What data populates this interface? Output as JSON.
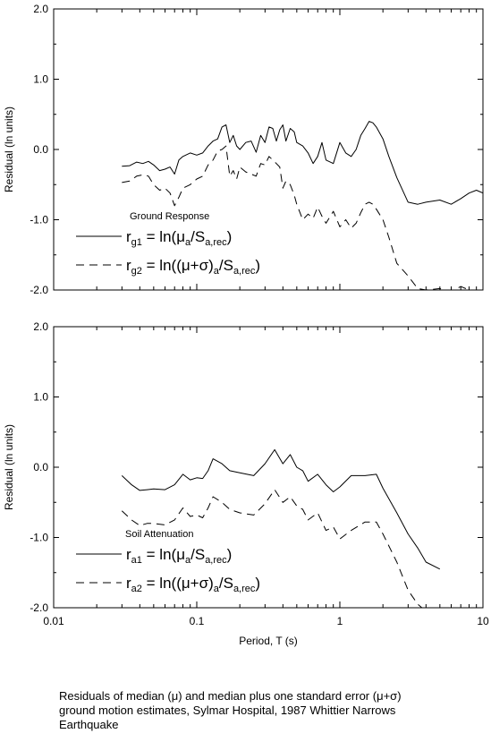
{
  "chart_data": [
    {
      "type": "line",
      "panel": "top",
      "xscale": "log",
      "xlim": [
        0.01,
        10
      ],
      "ylim": [
        -2.0,
        2.0
      ],
      "ylabel": "Residual (ln units)",
      "yticks": [
        "2.0",
        "1.0",
        "0.0",
        "-1.0",
        "-2.0"
      ],
      "annotation": "Ground Response",
      "legend": [
        {
          "style": "solid",
          "sym": "r",
          "sub": "g1",
          "eq": "= ln(",
          "mu": "μ",
          "mu_sub": "a",
          "slash": "/S",
          "s_sub": "a,rec",
          "close": ")"
        },
        {
          "style": "dashed",
          "sym": "r",
          "sub": "g2",
          "eq": "= ln((",
          "mu": "μ+σ",
          "mu_sub": "a",
          "close1": ")",
          "slash": "/S",
          "s_sub": "a,rec",
          "close": ")"
        }
      ],
      "series": [
        {
          "style": "solid",
          "x": [
            0.03,
            0.034,
            0.038,
            0.042,
            0.046,
            0.05,
            0.055,
            0.06,
            0.065,
            0.07,
            0.075,
            0.08,
            0.09,
            0.1,
            0.11,
            0.12,
            0.13,
            0.14,
            0.15,
            0.16,
            0.17,
            0.18,
            0.19,
            0.2,
            0.22,
            0.24,
            0.26,
            0.28,
            0.3,
            0.32,
            0.34,
            0.36,
            0.38,
            0.4,
            0.42,
            0.45,
            0.48,
            0.5,
            0.55,
            0.6,
            0.65,
            0.7,
            0.75,
            0.8,
            0.9,
            1.0,
            1.1,
            1.2,
            1.3,
            1.4,
            1.5,
            1.6,
            1.7,
            1.8,
            2.0,
            2.2,
            2.5,
            3.0,
            3.5,
            4.0,
            5.0,
            6.0,
            7.0,
            8.0,
            9.0,
            10.0
          ],
          "y": [
            -0.24,
            -0.23,
            -0.18,
            -0.2,
            -0.17,
            -0.22,
            -0.3,
            -0.28,
            -0.25,
            -0.35,
            -0.15,
            -0.1,
            -0.05,
            -0.08,
            -0.05,
            0.05,
            0.12,
            0.15,
            0.32,
            0.35,
            0.1,
            0.2,
            0.05,
            0.0,
            0.1,
            0.12,
            -0.04,
            0.2,
            0.1,
            0.32,
            0.3,
            0.12,
            0.28,
            0.35,
            0.12,
            0.3,
            0.25,
            0.1,
            0.05,
            -0.05,
            -0.2,
            -0.1,
            0.1,
            -0.15,
            -0.2,
            0.1,
            -0.05,
            -0.1,
            0.0,
            0.2,
            0.3,
            0.4,
            0.38,
            0.32,
            0.15,
            -0.1,
            -0.4,
            -0.75,
            -0.78,
            -0.75,
            -0.72,
            -0.78,
            -0.7,
            -0.62,
            -0.58,
            -0.62
          ]
        },
        {
          "style": "dashed",
          "x": [
            0.03,
            0.034,
            0.038,
            0.042,
            0.046,
            0.05,
            0.055,
            0.06,
            0.065,
            0.07,
            0.075,
            0.08,
            0.09,
            0.1,
            0.11,
            0.12,
            0.13,
            0.14,
            0.15,
            0.16,
            0.17,
            0.18,
            0.19,
            0.2,
            0.22,
            0.24,
            0.26,
            0.28,
            0.3,
            0.32,
            0.34,
            0.36,
            0.38,
            0.4,
            0.42,
            0.45,
            0.48,
            0.5,
            0.55,
            0.6,
            0.65,
            0.7,
            0.75,
            0.8,
            0.9,
            1.0,
            1.1,
            1.2,
            1.3,
            1.4,
            1.5,
            1.6,
            1.7,
            1.8,
            2.0,
            2.2,
            2.5,
            3.0,
            3.5,
            4.0,
            5.0,
            6.0,
            7.0,
            8.0,
            9.0,
            10.0
          ],
          "y": [
            -0.47,
            -0.45,
            -0.38,
            -0.36,
            -0.38,
            -0.5,
            -0.58,
            -0.55,
            -0.62,
            -0.8,
            -0.68,
            -0.55,
            -0.5,
            -0.42,
            -0.38,
            -0.22,
            -0.15,
            -0.02,
            0.0,
            0.05,
            -0.38,
            -0.3,
            -0.42,
            -0.25,
            -0.32,
            -0.35,
            -0.38,
            -0.2,
            -0.22,
            -0.1,
            -0.15,
            -0.2,
            -0.25,
            -0.55,
            -0.45,
            -0.5,
            -0.65,
            -0.78,
            -1.0,
            -0.92,
            -0.98,
            -0.82,
            -0.95,
            -1.05,
            -0.88,
            -1.1,
            -1.0,
            -1.12,
            -1.05,
            -0.9,
            -0.78,
            -0.75,
            -0.78,
            -0.85,
            -1.0,
            -1.25,
            -1.62,
            -1.8,
            -1.98,
            -2.0,
            -1.98,
            -2.02,
            -1.95,
            -2.0,
            -2.02,
            -2.02
          ]
        }
      ]
    },
    {
      "type": "line",
      "panel": "bottom",
      "xscale": "log",
      "xlim": [
        0.01,
        10
      ],
      "ylim": [
        -2.0,
        2.0
      ],
      "xlabel": "Period, T (s)",
      "ylabel": "Residual (ln units)",
      "xticks": [
        "0.01",
        "0.1",
        "1",
        "10"
      ],
      "yticks": [
        "2.0",
        "1.0",
        "0.0",
        "-1.0",
        "-2.0"
      ],
      "annotation": "Soil Attenuation",
      "legend": [
        {
          "style": "solid",
          "sym": "r",
          "sub": "a1",
          "eq": "= ln(",
          "mu": "μ",
          "mu_sub": "a",
          "slash": "/S",
          "s_sub": "a,rec",
          "close": ")"
        },
        {
          "style": "dashed",
          "sym": "r",
          "sub": "a2",
          "eq": "= ln((",
          "mu": "μ+σ",
          "mu_sub": "a",
          "close1": ")",
          "slash": "/S",
          "s_sub": "a,rec",
          "close": ")"
        }
      ],
      "series": [
        {
          "style": "solid",
          "x": [
            0.03,
            0.035,
            0.04,
            0.045,
            0.05,
            0.06,
            0.07,
            0.08,
            0.09,
            0.1,
            0.11,
            0.12,
            0.13,
            0.15,
            0.17,
            0.2,
            0.25,
            0.3,
            0.35,
            0.4,
            0.45,
            0.5,
            0.55,
            0.6,
            0.7,
            0.8,
            0.9,
            1.0,
            1.2,
            1.5,
            1.8,
            2.0,
            2.5,
            3.0,
            3.5,
            4.0,
            5.0
          ],
          "y": [
            -0.12,
            -0.25,
            -0.33,
            -0.32,
            -0.31,
            -0.32,
            -0.25,
            -0.1,
            -0.18,
            -0.15,
            -0.16,
            -0.05,
            0.12,
            0.05,
            -0.05,
            -0.08,
            -0.12,
            0.05,
            0.25,
            0.05,
            0.18,
            0.0,
            -0.05,
            -0.2,
            -0.1,
            -0.25,
            -0.35,
            -0.28,
            -0.12,
            -0.12,
            -0.1,
            -0.3,
            -0.65,
            -0.95,
            -1.15,
            -1.35,
            -1.45
          ]
        },
        {
          "style": "dashed",
          "x": [
            0.03,
            0.035,
            0.04,
            0.045,
            0.05,
            0.06,
            0.07,
            0.08,
            0.09,
            0.1,
            0.11,
            0.12,
            0.13,
            0.15,
            0.17,
            0.2,
            0.25,
            0.3,
            0.35,
            0.4,
            0.45,
            0.5,
            0.55,
            0.6,
            0.7,
            0.8,
            0.9,
            1.0,
            1.2,
            1.5,
            1.8,
            2.0,
            2.5,
            3.0,
            3.5,
            4.0,
            5.0
          ],
          "y": [
            -0.62,
            -0.75,
            -0.83,
            -0.8,
            -0.8,
            -0.82,
            -0.75,
            -0.58,
            -0.7,
            -0.68,
            -0.72,
            -0.58,
            -0.42,
            -0.5,
            -0.6,
            -0.65,
            -0.68,
            -0.52,
            -0.32,
            -0.5,
            -0.42,
            -0.55,
            -0.6,
            -0.75,
            -0.65,
            -0.9,
            -0.85,
            -1.02,
            -0.9,
            -0.78,
            -0.78,
            -0.95,
            -1.35,
            -1.75,
            -1.95,
            -2.05,
            -2.2
          ]
        }
      ]
    }
  ],
  "caption": {
    "line1_pre": "Residuals of median (",
    "line1_mu": "μ",
    "line1_mid": ") and median plus one standard error (",
    "line1_musig": "μ+σ",
    "line1_end": ")",
    "line2": "ground motion estimates, Sylmar Hospital, 1987 Whittier Narrows",
    "line3": "Earthquake"
  }
}
